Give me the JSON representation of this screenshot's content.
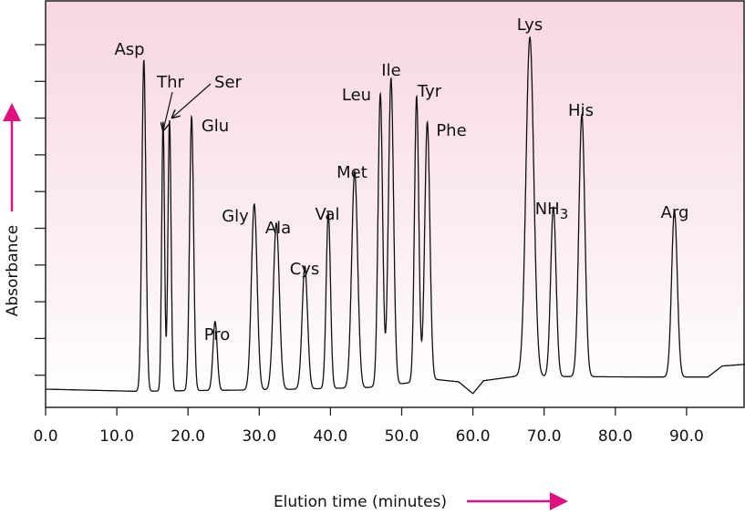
{
  "chart_data": {
    "type": "line",
    "title": "",
    "xlabel": "Elution time (minutes)",
    "ylabel": "Absorbance",
    "xlim": [
      0,
      98.5
    ],
    "ylim": [
      0.12,
      11.2
    ],
    "x_ticks": [
      "0.0",
      "10.0",
      "20.0",
      "30.0",
      "40.0",
      "50.0",
      "60.0",
      "70.0",
      "80.0",
      "90.0"
    ],
    "x_tick_values": [
      0,
      10,
      20,
      30,
      40,
      50,
      60,
      70,
      80,
      90
    ],
    "y_tick_count": 10,
    "y_tick_labels_shown": false,
    "grid": false,
    "legend": "none",
    "colors": {
      "line": "#111111",
      "arrow": "#e0117f",
      "bg_top": "#f7d6e3",
      "bg_bottom": "#ffffff"
    },
    "baseline": [
      [
        0,
        0.62
      ],
      [
        13,
        0.56
      ],
      [
        20,
        0.58
      ],
      [
        30,
        0.6
      ],
      [
        45,
        0.66
      ],
      [
        55,
        0.88
      ],
      [
        58,
        0.82
      ],
      [
        60,
        0.5
      ],
      [
        61.5,
        0.85
      ],
      [
        66,
        0.97
      ],
      [
        85,
        0.95
      ],
      [
        93,
        0.95
      ],
      [
        95,
        1.25
      ],
      [
        98.5,
        1.3
      ]
    ],
    "peaks": [
      {
        "label": "Asp",
        "sub": "",
        "time": 13.8,
        "height": 9.58,
        "sigma": 0.28
      },
      {
        "label": "Thr",
        "sub": "",
        "time": 16.5,
        "height": 7.9,
        "sigma": 0.2
      },
      {
        "label": "Ser",
        "sub": "",
        "time": 17.4,
        "height": 7.94,
        "sigma": 0.22
      },
      {
        "label": "Glu",
        "sub": "",
        "time": 20.5,
        "height": 8.04,
        "sigma": 0.28
      },
      {
        "label": "Pro",
        "sub": "",
        "time": 23.8,
        "height": 2.46,
        "sigma": 0.3
      },
      {
        "label": "Gly",
        "sub": "",
        "time": 29.3,
        "height": 5.66,
        "sigma": 0.4
      },
      {
        "label": "Ala",
        "sub": "",
        "time": 32.4,
        "height": 5.14,
        "sigma": 0.42
      },
      {
        "label": "Cys",
        "sub": "",
        "time": 36.4,
        "height": 3.97,
        "sigma": 0.38
      },
      {
        "label": "Val",
        "sub": "",
        "time": 39.7,
        "height": 5.43,
        "sigma": 0.3
      },
      {
        "label": "Met",
        "sub": "",
        "time": 43.4,
        "height": 6.55,
        "sigma": 0.42
      },
      {
        "label": "Leu",
        "sub": "",
        "time": 47.0,
        "height": 8.66,
        "sigma": 0.32
      },
      {
        "label": "Ile",
        "sub": "",
        "time": 48.5,
        "height": 9.08,
        "sigma": 0.36
      },
      {
        "label": "Tyr",
        "sub": "",
        "time": 52.1,
        "height": 8.59,
        "sigma": 0.3
      },
      {
        "label": "Phe",
        "sub": "",
        "time": 53.6,
        "height": 7.89,
        "sigma": 0.36
      },
      {
        "label": "Lys",
        "sub": "",
        "time": 68.0,
        "height": 10.2,
        "sigma": 0.55
      },
      {
        "label": "NH",
        "sub": "3",
        "time": 71.3,
        "height": 5.58,
        "sigma": 0.38
      },
      {
        "label": "His",
        "sub": "",
        "time": 75.3,
        "height": 8.09,
        "sigma": 0.42
      },
      {
        "label": "Arg",
        "sub": "",
        "time": 88.3,
        "height": 5.48,
        "sigma": 0.4
      }
    ]
  }
}
